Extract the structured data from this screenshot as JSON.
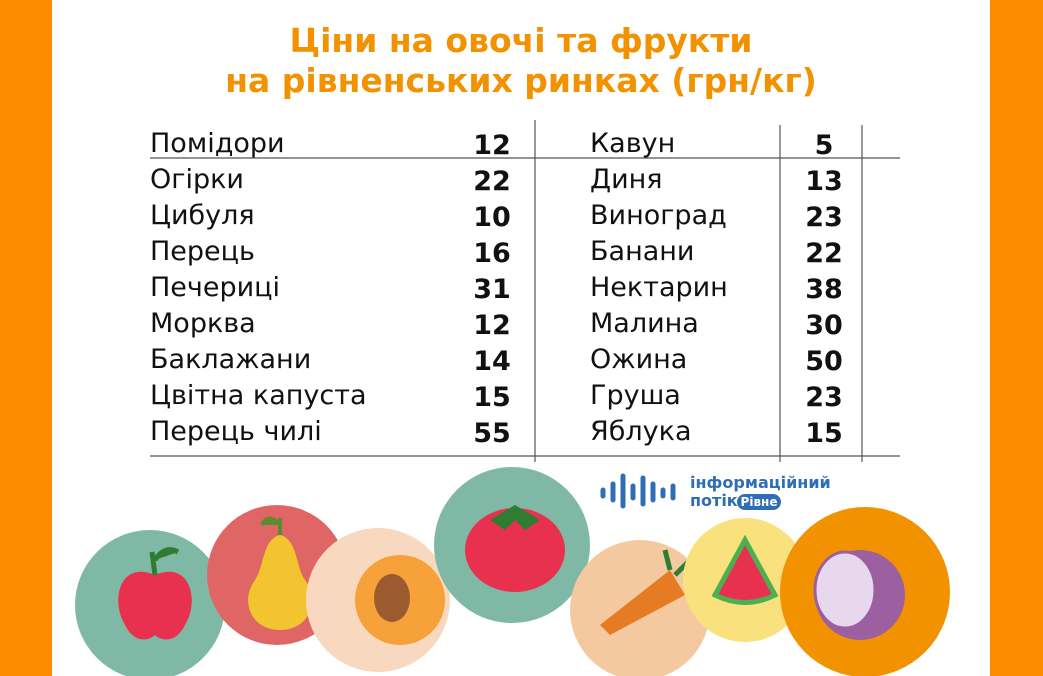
{
  "title": [
    "Ціни на овочі та фрукти",
    "на рівненських ринках (грн/кг)"
  ],
  "vegetables": [
    {
      "name": "Помідори",
      "price": 12
    },
    {
      "name": "Огірки",
      "price": 22
    },
    {
      "name": "Цибуля",
      "price": 10
    },
    {
      "name": "Перець",
      "price": 16
    },
    {
      "name": "Печериці",
      "price": 31
    },
    {
      "name": "Морква",
      "price": 12
    },
    {
      "name": "Баклажани",
      "price": 14
    },
    {
      "name": "Цвітна капуста",
      "price": 15
    },
    {
      "name": "Перець чилі",
      "price": 55
    }
  ],
  "fruits": [
    {
      "name": "Кавун",
      "price": 5
    },
    {
      "name": "Диня",
      "price": 13
    },
    {
      "name": "Виноград",
      "price": 23
    },
    {
      "name": "Банани",
      "price": 22
    },
    {
      "name": "Нектарин",
      "price": 38
    },
    {
      "name": "Малина",
      "price": 30
    },
    {
      "name": "Ожина",
      "price": 50
    },
    {
      "name": "Груша",
      "price": 23
    },
    {
      "name": "Яблука",
      "price": 15
    }
  ],
  "logo": {
    "line1": "інформаційний",
    "line2": "потік",
    "badge": "Рівне"
  }
}
